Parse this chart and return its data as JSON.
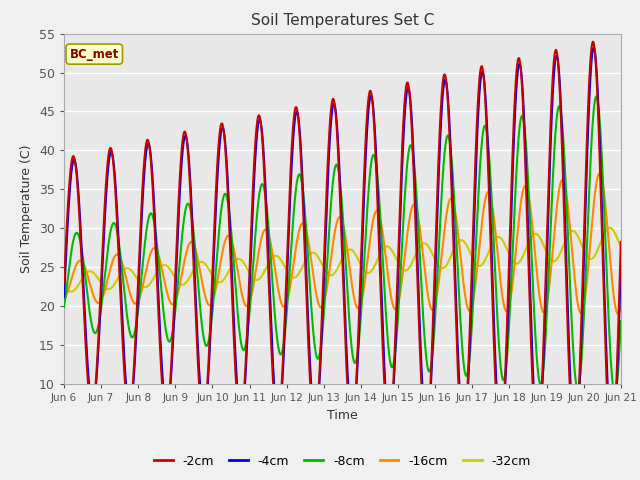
{
  "title": "Soil Temperatures Set C",
  "xlabel": "Time",
  "ylabel": "Soil Temperature (C)",
  "ylim": [
    10,
    55
  ],
  "annotation": "BC_met",
  "fig_bg": "#f0f0f0",
  "ax_bg": "#e8e8e8",
  "series": {
    "-2cm": {
      "color": "#cc0000",
      "lw": 1.5
    },
    "-4cm": {
      "color": "#0000dd",
      "lw": 1.5
    },
    "-8cm": {
      "color": "#00bb00",
      "lw": 1.5
    },
    "-16cm": {
      "color": "#ff8800",
      "lw": 1.5
    },
    "-32cm": {
      "color": "#cccc00",
      "lw": 1.5
    }
  },
  "xtick_labels": [
    "Jun 6",
    "Jun 7",
    "Jun 8",
    "Jun 9",
    "Jun 10",
    "Jun 11",
    "Jun 12",
    "Jun 13",
    "Jun 14",
    "Jun 15",
    "Jun 16",
    "Jun 17",
    "Jun 18",
    "Jun 19",
    "Jun 20",
    "Jun 21"
  ],
  "trend_base": 23.0,
  "trend_slope": 0.35,
  "amp2_base": 16.0,
  "amp2_slope": 0.7,
  "amp4_base": 15.5,
  "amp4_slope": 0.68,
  "phase4": 0.12,
  "amp8_base": 6.0,
  "amp8_slope": 0.9,
  "phase8": 0.55,
  "amp16_base": 2.5,
  "amp16_slope": 0.45,
  "phase16": 1.1,
  "amp32_base": 1.2,
  "amp32_slope": 0.05,
  "phase32": 2.8
}
